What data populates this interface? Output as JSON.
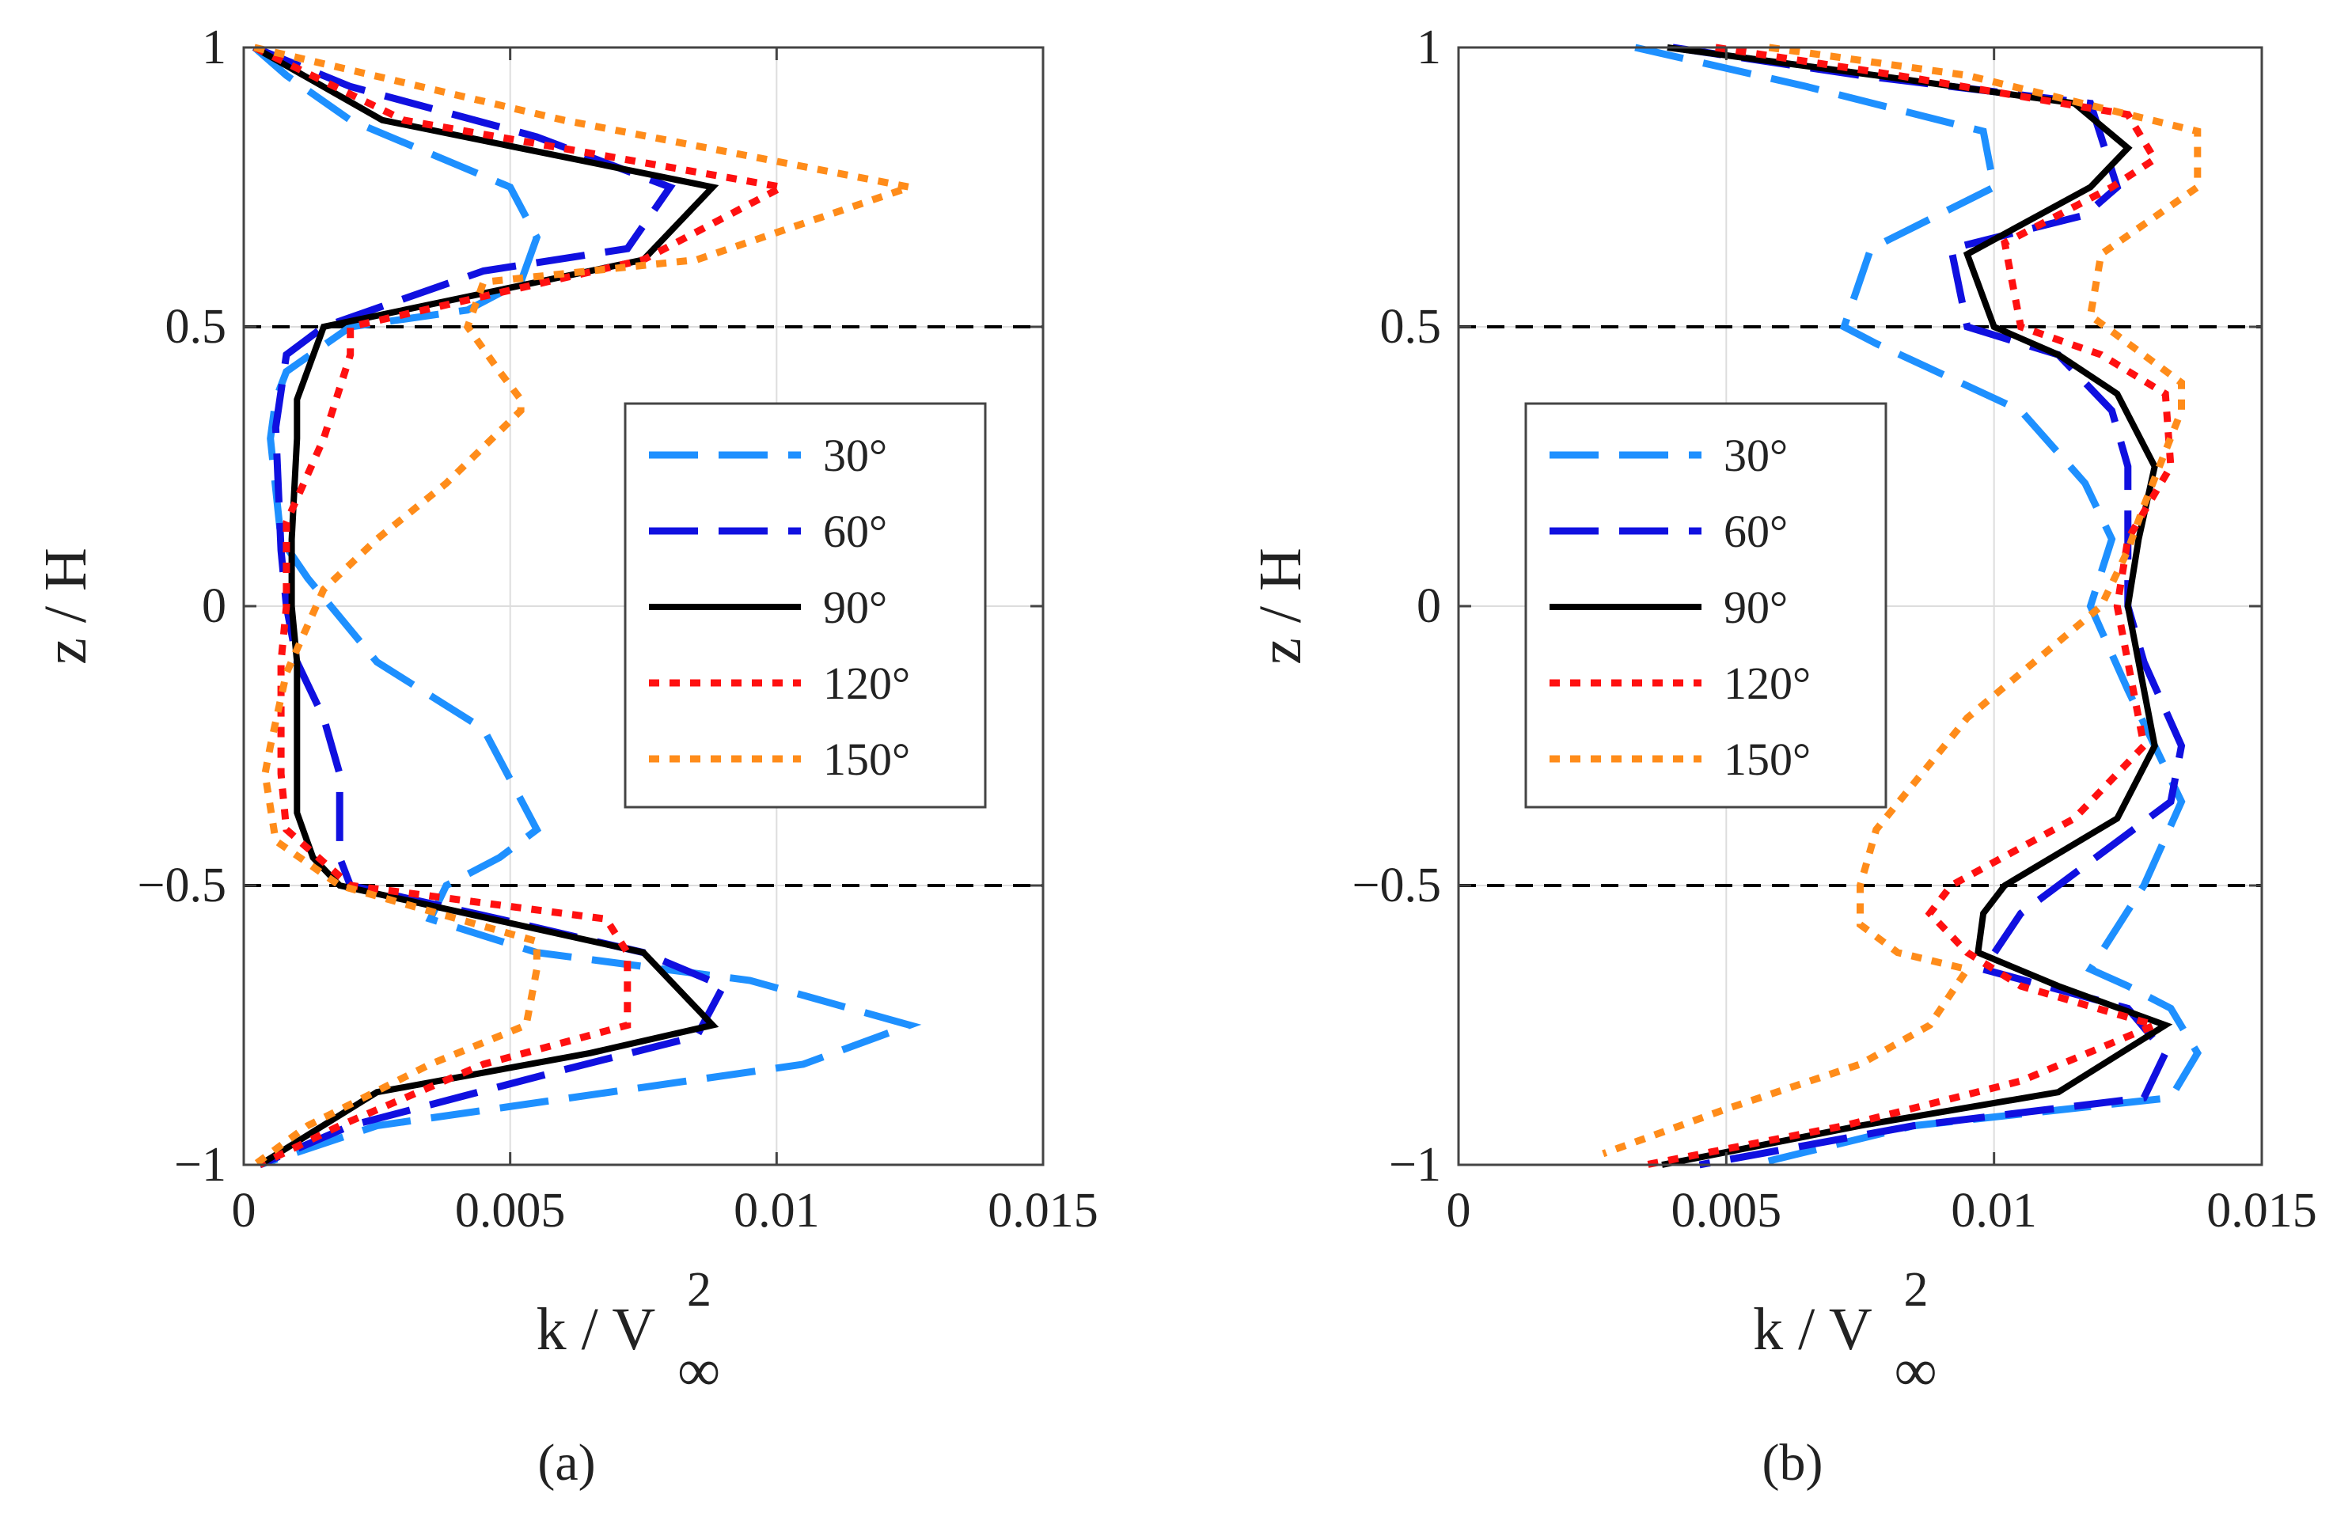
{
  "chart_data": [
    {
      "type": "line",
      "panel_label": "(a)",
      "xlabel_main": "k / V",
      "xlabel_sup": "2",
      "xlabel_sub": "∞",
      "ylabel": "z / H",
      "xlim": [
        0,
        0.015
      ],
      "ylim": [
        -1,
        1
      ],
      "xticks": [
        "0",
        "0.005",
        "0.01",
        "0.015"
      ],
      "yticks": [
        "−1",
        "−0.5",
        "0",
        "0.5",
        "1"
      ],
      "grid": true,
      "reference_lines": [
        0.5,
        -0.5
      ],
      "legend_position": "center-right",
      "series": [
        {
          "name": "30°",
          "color": "#1e90ff",
          "style": "dashed",
          "x": [
            0.0002,
            0.0008,
            0.002,
            0.005,
            0.0055,
            0.0052,
            0.0042,
            0.002,
            0.0008,
            0.0006,
            0.0005,
            0.0007,
            0.0012,
            0.0025,
            0.0045,
            0.0055,
            0.0048,
            0.0038,
            0.0035,
            0.0055,
            0.0095,
            0.0125,
            0.0105,
            0.0025,
            0.0003
          ],
          "y": [
            1,
            0.95,
            0.87,
            0.75,
            0.66,
            0.58,
            0.53,
            0.5,
            0.42,
            0.37,
            0.3,
            0.12,
            0.05,
            -0.1,
            -0.22,
            -0.4,
            -0.45,
            -0.5,
            -0.56,
            -0.62,
            -0.67,
            -0.75,
            -0.82,
            -0.93,
            -1
          ]
        },
        {
          "name": "60°",
          "color": "#1010e0",
          "style": "dashed",
          "x": [
            0.0002,
            0.002,
            0.0055,
            0.008,
            0.0072,
            0.0045,
            0.0015,
            0.0008,
            0.0006,
            0.0007,
            0.0008,
            0.001,
            0.0015,
            0.0018,
            0.0018,
            0.002,
            0.0048,
            0.0075,
            0.009,
            0.0085,
            0.006,
            0.002,
            0.0003
          ],
          "y": [
            1,
            0.93,
            0.84,
            0.75,
            0.64,
            0.6,
            0.5,
            0.45,
            0.32,
            0.1,
            0,
            -0.1,
            -0.2,
            -0.3,
            -0.45,
            -0.5,
            -0.56,
            -0.62,
            -0.68,
            -0.77,
            -0.83,
            -0.93,
            -1
          ]
        },
        {
          "name": "90°",
          "color": "#000000",
          "style": "solid",
          "x": [
            0.0002,
            0.0026,
            0.0088,
            0.0075,
            0.0015,
            0.001,
            0.001,
            0.0009,
            0.0009,
            0.001,
            0.001,
            0.0013,
            0.0018,
            0.0075,
            0.0088,
            0.0065,
            0.0025,
            0.0003
          ],
          "y": [
            1,
            0.87,
            0.75,
            0.62,
            0.5,
            0.37,
            0.3,
            0.12,
            0,
            -0.1,
            -0.37,
            -0.45,
            -0.5,
            -0.62,
            -0.75,
            -0.8,
            -0.87,
            -1
          ]
        },
        {
          "name": "120°",
          "color": "#ff1010",
          "style": "dotted",
          "x": [
            0.0002,
            0.003,
            0.0101,
            0.0075,
            0.002,
            0.002,
            0.0015,
            0.0008,
            0.0008,
            0.0007,
            0.0007,
            0.0008,
            0.002,
            0.0068,
            0.0072,
            0.0072,
            0.0045,
            0.0018,
            0.0003
          ],
          "y": [
            1,
            0.87,
            0.75,
            0.62,
            0.5,
            0.45,
            0.3,
            0.15,
            0,
            -0.1,
            -0.3,
            -0.4,
            -0.5,
            -0.56,
            -0.62,
            -0.75,
            -0.82,
            -0.93,
            -1
          ]
        },
        {
          "name": "150°",
          "color": "#ff8c1a",
          "style": "dotted",
          "x": [
            0.0002,
            0.006,
            0.0125,
            0.0085,
            0.0045,
            0.0042,
            0.0048,
            0.0052,
            0.0052,
            0.0038,
            0.0025,
            0.0015,
            0.0008,
            0.0005,
            0.0004,
            0.0006,
            0.0018,
            0.0055,
            0.0055,
            0.0053,
            0.0035,
            0.0012,
            0.0002
          ],
          "y": [
            1,
            0.87,
            0.75,
            0.62,
            0.58,
            0.5,
            0.42,
            0.37,
            0.35,
            0.22,
            0.12,
            0.03,
            -0.12,
            -0.25,
            -0.3,
            -0.42,
            -0.5,
            -0.6,
            -0.65,
            -0.75,
            -0.82,
            -0.93,
            -1
          ]
        }
      ]
    },
    {
      "type": "line",
      "panel_label": "(b)",
      "xlabel_main": "k / V",
      "xlabel_sup": "2",
      "xlabel_sub": "∞",
      "ylabel": "z / H",
      "xlim": [
        0,
        0.015
      ],
      "ylim": [
        -1,
        1
      ],
      "xticks": [
        "0",
        "0.005",
        "0.01",
        "0.015"
      ],
      "yticks": [
        "−1",
        "−0.5",
        "0",
        "0.5",
        "1"
      ],
      "grid": true,
      "reference_lines": [
        0.5,
        -0.5
      ],
      "legend_position": "center-left",
      "series": [
        {
          "name": "30°",
          "color": "#1e90ff",
          "style": "dashed",
          "x": [
            0.0033,
            0.0065,
            0.0098,
            0.01,
            0.0077,
            0.0072,
            0.0078,
            0.0105,
            0.0117,
            0.0122,
            0.0118,
            0.0125,
            0.0135,
            0.0128,
            0.0118,
            0.0125,
            0.0133,
            0.0138,
            0.0133,
            0.0085,
            0.0055
          ],
          "y": [
            1,
            0.93,
            0.85,
            0.75,
            0.64,
            0.5,
            0.47,
            0.35,
            0.22,
            0.12,
            0,
            -0.15,
            -0.35,
            -0.5,
            -0.65,
            -0.68,
            -0.72,
            -0.8,
            -0.88,
            -0.93,
            -1
          ]
        },
        {
          "name": "60°",
          "color": "#1010e0",
          "style": "dashed",
          "x": [
            0.004,
            0.0075,
            0.0118,
            0.0123,
            0.0117,
            0.0092,
            0.0095,
            0.0112,
            0.0122,
            0.0125,
            0.0125,
            0.0128,
            0.0135,
            0.0133,
            0.0105,
            0.0098,
            0.0125,
            0.0132,
            0.0128,
            0.0085,
            0.0045
          ],
          "y": [
            1,
            0.95,
            0.9,
            0.75,
            0.7,
            0.64,
            0.5,
            0.45,
            0.35,
            0.25,
            0,
            -0.1,
            -0.25,
            -0.35,
            -0.55,
            -0.65,
            -0.72,
            -0.8,
            -0.88,
            -0.93,
            -1
          ]
        },
        {
          "name": "90°",
          "color": "#000000",
          "style": "solid",
          "x": [
            0.0039,
            0.0078,
            0.0115,
            0.0125,
            0.0118,
            0.0095,
            0.01,
            0.0112,
            0.0123,
            0.013,
            0.0127,
            0.0125,
            0.013,
            0.0123,
            0.0102,
            0.0098,
            0.0097,
            0.0112,
            0.0132,
            0.0112,
            0.0075,
            0.0038
          ],
          "y": [
            1,
            0.95,
            0.9,
            0.82,
            0.75,
            0.63,
            0.5,
            0.45,
            0.38,
            0.25,
            0.12,
            0,
            -0.25,
            -0.38,
            -0.5,
            -0.55,
            -0.62,
            -0.68,
            -0.75,
            -0.87,
            -0.93,
            -1
          ]
        },
        {
          "name": "120°",
          "color": "#ff1010",
          "style": "dotted",
          "x": [
            0.0048,
            0.0082,
            0.0125,
            0.013,
            0.0122,
            0.0102,
            0.0105,
            0.012,
            0.0132,
            0.0133,
            0.0125,
            0.0123,
            0.0128,
            0.0115,
            0.0092,
            0.0088,
            0.0095,
            0.0105,
            0.013,
            0.0105,
            0.0072,
            0.0035
          ],
          "y": [
            1,
            0.95,
            0.88,
            0.8,
            0.75,
            0.65,
            0.5,
            0.45,
            0.38,
            0.25,
            0.12,
            0,
            -0.25,
            -0.38,
            -0.5,
            -0.55,
            -0.62,
            -0.68,
            -0.75,
            -0.85,
            -0.93,
            -1
          ]
        },
        {
          "name": "150°",
          "color": "#ff8c1a",
          "style": "dotted",
          "x": [
            0.0058,
            0.0095,
            0.0138,
            0.0138,
            0.012,
            0.0118,
            0.0135,
            0.0135,
            0.0128,
            0.0125,
            0.012,
            0.0095,
            0.0078,
            0.0075,
            0.0075,
            0.0082,
            0.0095,
            0.0088,
            0.0075,
            0.005,
            0.0027
          ],
          "y": [
            1,
            0.95,
            0.85,
            0.75,
            0.63,
            0.52,
            0.4,
            0.35,
            0.18,
            0.1,
            0,
            -0.2,
            -0.4,
            -0.5,
            -0.57,
            -0.62,
            -0.65,
            -0.75,
            -0.82,
            -0.9,
            -0.98
          ]
        }
      ]
    }
  ]
}
